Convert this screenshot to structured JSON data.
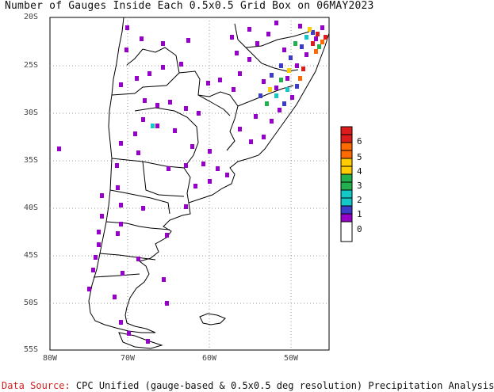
{
  "title": "Number of Gauges Inside Each 0.5x0.5 Grid Box on 06MAY2023",
  "footer": {
    "source_label": "Data Source:",
    "source_text": " CPC Unified (gauge-based & 0.5x0.5 deg resolution) Precipitation Analysis"
  },
  "y_ticks": [
    "20S",
    "25S",
    "30S",
    "35S",
    "40S",
    "45S",
    "50S",
    "55S"
  ],
  "x_ticks": [
    "80W",
    "70W",
    "60W",
    "50W"
  ],
  "legend": {
    "labels": [
      "6",
      "5",
      "4",
      "3",
      "2",
      "1",
      "0"
    ],
    "colors": [
      "#dd1c1c",
      "#ff6a00",
      "#ffcc00",
      "#22b14c",
      "#14c8c8",
      "#3c3cc8",
      "#9600c8",
      "#ffffff"
    ]
  },
  "colors": {
    "land_outline": "#000000",
    "grid": "#9a9a9a",
    "frame": "#000000"
  }
}
